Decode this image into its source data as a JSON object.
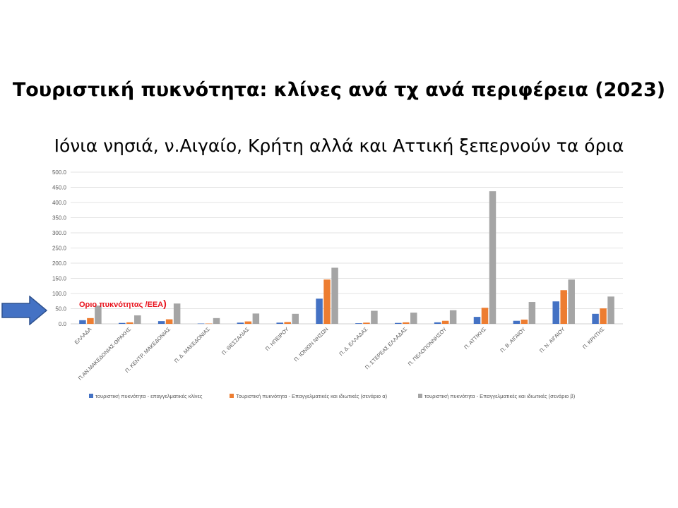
{
  "slide": {
    "title": "Τουριστική πυκνότητα: κλίνες ανά τχ ανά περιφέρεια (2023)",
    "subtitle": "Ιόνια νησιά, ν.Αιγαίο, Κρήτη αλλά και Αττική ξεπερνούν τα όρια"
  },
  "annotation": {
    "text": "Οριο πυκνότητας /ΕΕΑ",
    "paren": ")",
    "color": "#e8121c",
    "value": 50,
    "arrow_icon": "right-arrow-icon",
    "arrow_color": "#4472c4"
  },
  "chart_data": {
    "type": "bar",
    "title": "",
    "xlabel": "",
    "ylabel": "",
    "ylim": [
      0,
      500
    ],
    "yticks": [
      "0.0",
      "50.0",
      "100.0",
      "150.0",
      "200.0",
      "250.0",
      "300.0",
      "350.0",
      "400.0",
      "450.0",
      "500.0"
    ],
    "grid": true,
    "legend_position": "bottom",
    "categories": [
      "ΕΛΛΑΔΑ",
      "Π.ΑΝ.ΜΑΚΕΔΟΝΙΑΣ-ΘΡΑΚΗΣ",
      "Π. ΚΕΝΤΡ. ΜΑΚΕΔΟΝΙΑΣ",
      "Π. Δ. ΜΑΚΕΔΟΝΙΑΣ",
      "Π. ΘΕΣΣΑΛΙΑΣ",
      "Π. ΗΠΕΙΡΟΥ",
      "Π. ΙΟΝΙΩΝ ΝΗΣΩΝ",
      "Π. Δ. ΕΛΛΑΔΑΣ",
      "Π. ΣΤΕΡΕΑΣ ΕΛΛΑΔΑΣ",
      "Π. ΠΕΛΟΠΟΝΝΗΣΟΥ",
      "Π. ΑΤΤΙΚΗΣ",
      "Π. Β. ΑΙΓΑΙΟΥ",
      "Π. Ν. ΑΙΓΑΙΟΥ",
      "Π. ΚΡΗΤΗΣ"
    ],
    "series": [
      {
        "name": "τουριστική πυκνότητα - επαγγελματικές κλίνες",
        "color": "#4472c4",
        "values": [
          12,
          3,
          9,
          1,
          4,
          4,
          83,
          2,
          3,
          5,
          23,
          10,
          74,
          33
        ]
      },
      {
        "name": "Τουριστική πυκνότητα - Επαγγελματικές και ιδιωτικές (σενάριο α)",
        "color": "#ed7d31",
        "values": [
          19,
          5,
          15,
          1,
          8,
          6,
          146,
          4,
          5,
          10,
          53,
          14,
          111,
          51
        ]
      },
      {
        "name": "τουριστική πυκνότητα - Επαγγελματικές και ιδιωτικές (σενάριο β)",
        "color": "#a5a5a5",
        "values": [
          60,
          28,
          67,
          19,
          34,
          33,
          185,
          43,
          37,
          45,
          437,
          72,
          146,
          90
        ]
      }
    ]
  }
}
